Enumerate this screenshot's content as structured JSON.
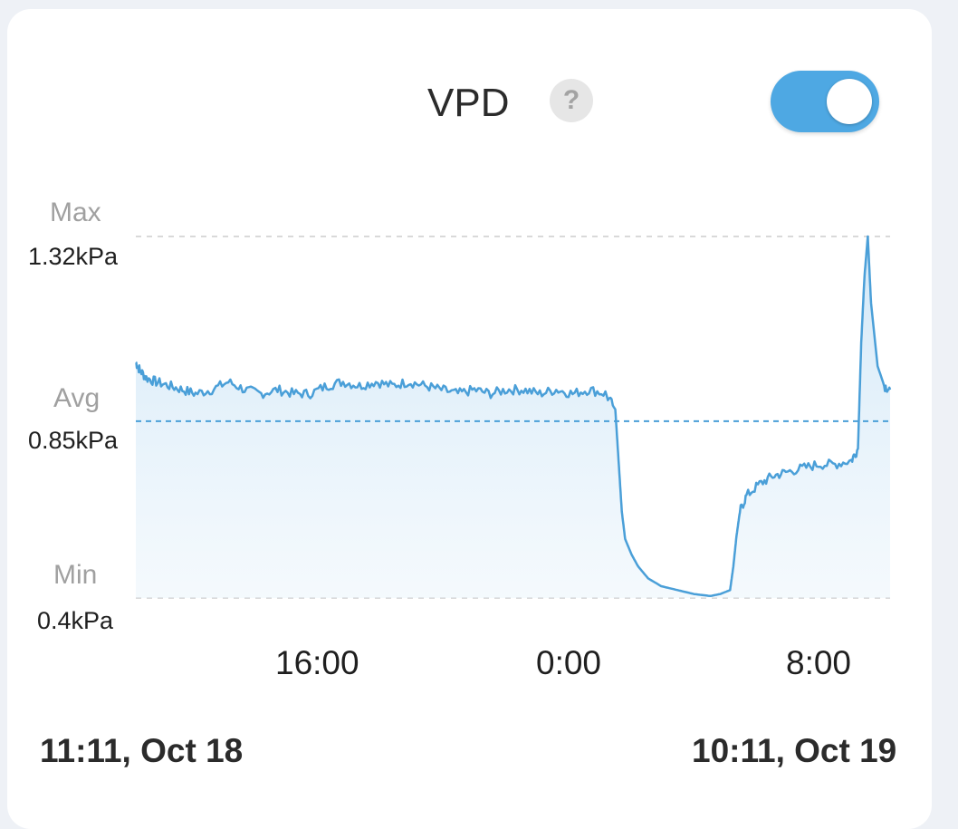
{
  "header": {
    "title": "VPD",
    "help_symbol": "?",
    "toggle_on": true
  },
  "colors": {
    "accent": "#4ea8e3",
    "line": "#4a9fd8",
    "fill": "#d6ebf8",
    "guide": "#d9d9d9"
  },
  "chart_data": {
    "type": "area",
    "title": "VPD",
    "unit": "kPa",
    "ylim": [
      0.4,
      1.32
    ],
    "reference_lines": {
      "max": {
        "label": "Max",
        "value_text": "1.32kPa",
        "value": 1.32
      },
      "avg": {
        "label": "Avg",
        "value_text": "0.85kPa",
        "value": 0.85
      },
      "min": {
        "label": "Min",
        "value_text": "0.4kPa",
        "value": 0.4
      }
    },
    "x_ticks": [
      "16:00",
      "0:00",
      "8:00"
    ],
    "x_range_labels": {
      "start": "11:11, Oct 18",
      "end": "10:11, Oct 19"
    },
    "x_hours_ticks": [
      16,
      24,
      32
    ],
    "x_start_hour": 11.18,
    "x_end_hour": 34.18,
    "series": [
      {
        "x": [
          11.18,
          11.3,
          11.5,
          11.8,
          12.2,
          12.6,
          13.0,
          13.5,
          14.0,
          14.5,
          15.0,
          15.5,
          16.0,
          16.5,
          17.0,
          17.5,
          18.0,
          18.5,
          19.0,
          19.5,
          20.0,
          20.5,
          21.0,
          21.5,
          22.0,
          22.5,
          23.0,
          23.5,
          24.0,
          24.5,
          25.0,
          25.5,
          25.8,
          25.9,
          26.0,
          26.1,
          26.3,
          26.5,
          26.8,
          27.2,
          27.7,
          28.2,
          28.7,
          29.0,
          29.3,
          29.4,
          29.5,
          29.6,
          29.8,
          30.2,
          30.6,
          31.0,
          31.5,
          32.0,
          32.5,
          33.0,
          33.2,
          33.3,
          33.4,
          33.5,
          33.6,
          33.8,
          34.0,
          34.18
        ],
        "y": [
          1.0,
          0.98,
          0.96,
          0.95,
          0.94,
          0.93,
          0.92,
          0.93,
          0.95,
          0.93,
          0.92,
          0.93,
          0.92,
          0.92,
          0.94,
          0.95,
          0.94,
          0.95,
          0.94,
          0.95,
          0.94,
          0.93,
          0.92,
          0.93,
          0.92,
          0.93,
          0.93,
          0.92,
          0.93,
          0.92,
          0.93,
          0.92,
          0.88,
          0.75,
          0.62,
          0.55,
          0.51,
          0.48,
          0.45,
          0.43,
          0.42,
          0.41,
          0.405,
          0.41,
          0.42,
          0.48,
          0.56,
          0.62,
          0.66,
          0.69,
          0.71,
          0.72,
          0.73,
          0.74,
          0.74,
          0.75,
          0.78,
          1.05,
          1.22,
          1.32,
          1.15,
          0.99,
          0.94,
          0.93
        ]
      }
    ]
  }
}
